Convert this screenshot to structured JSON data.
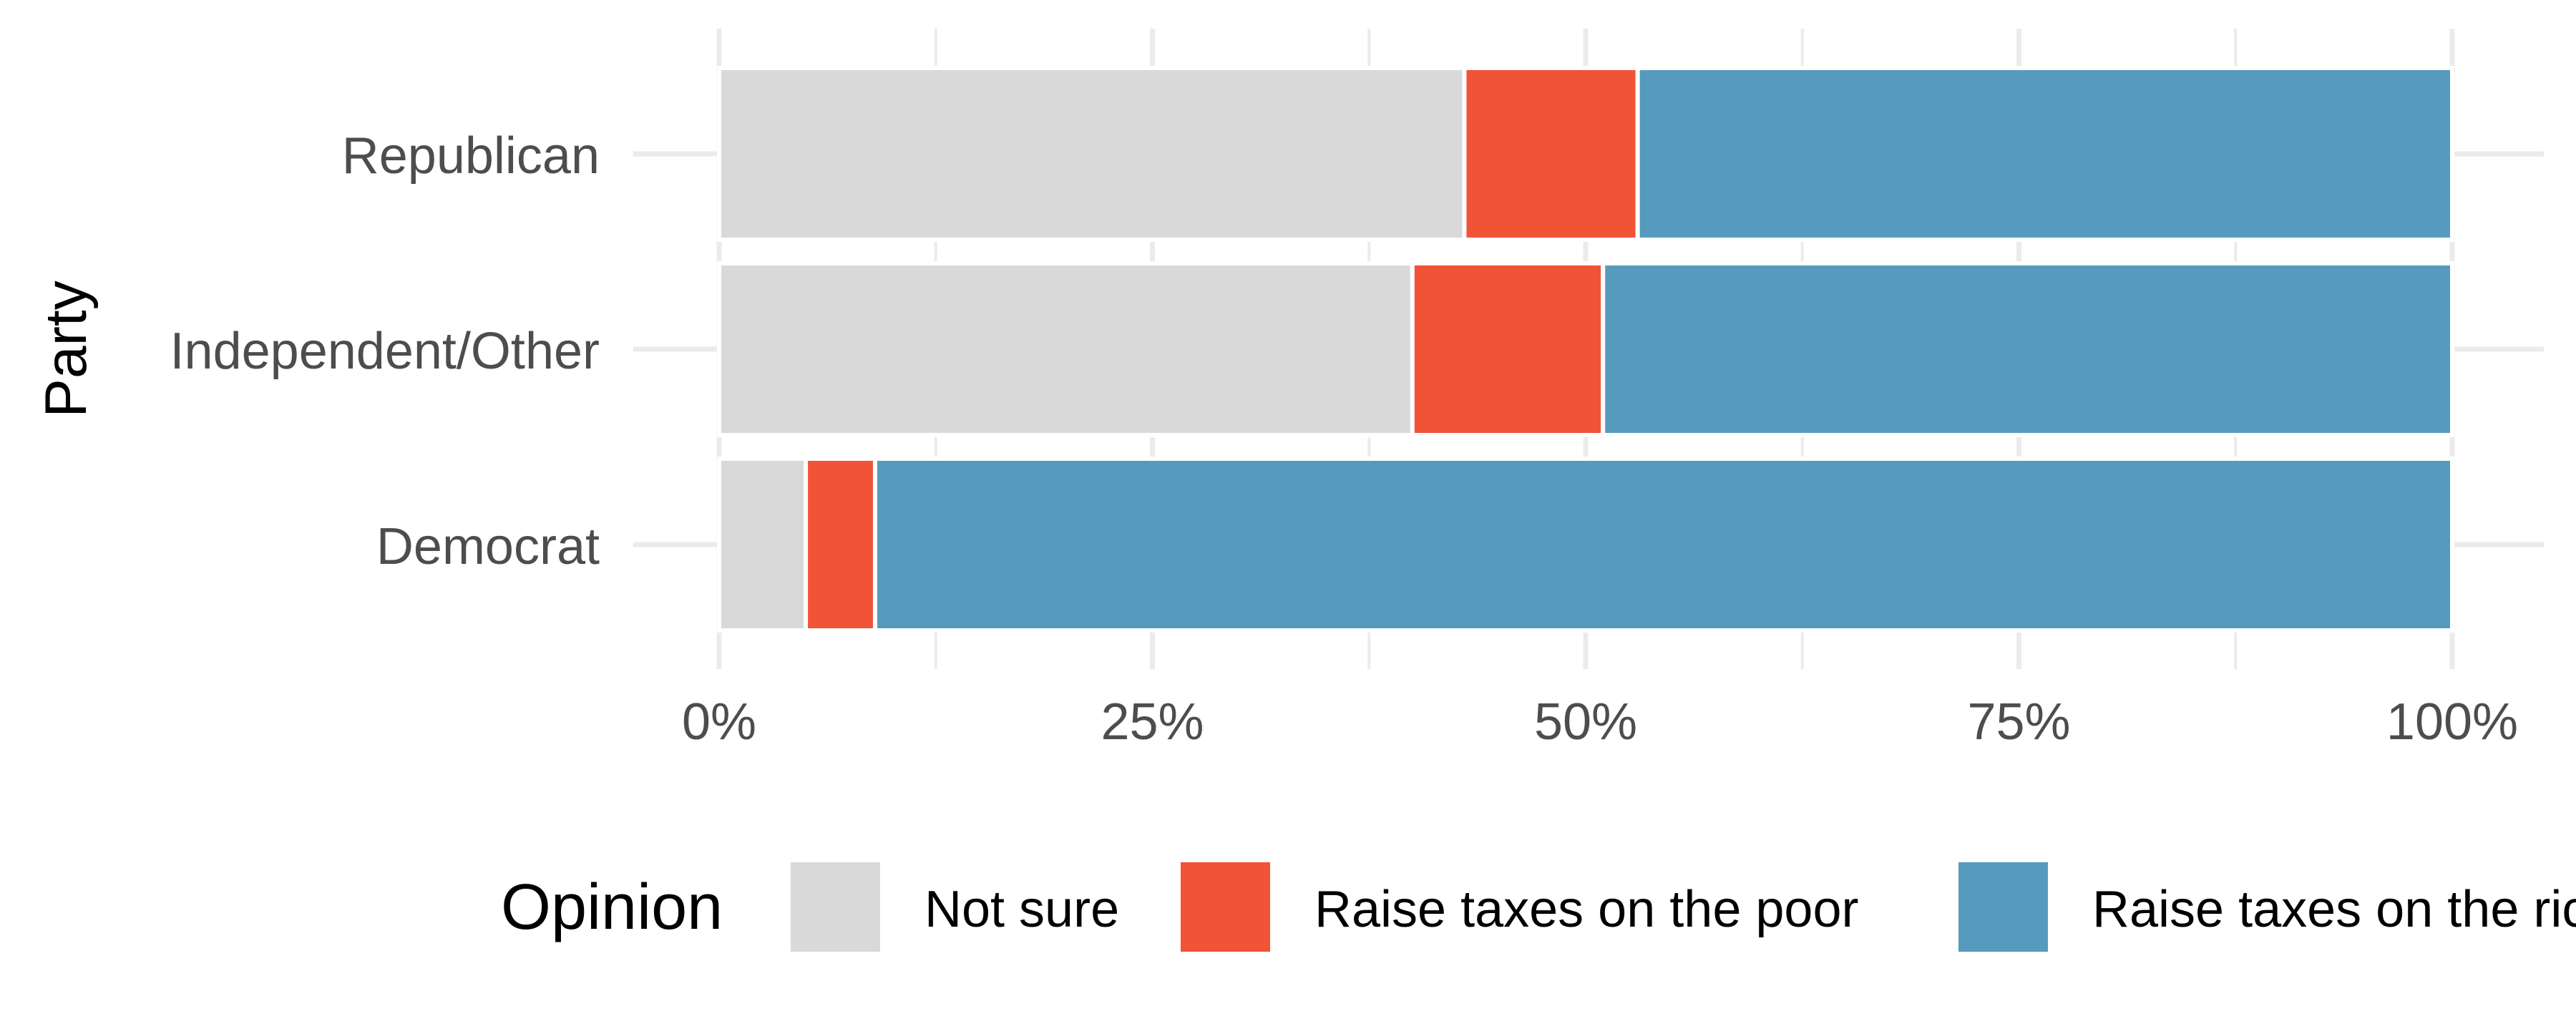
{
  "chart_data": {
    "type": "bar",
    "orientation": "horizontal",
    "stacked": "percent",
    "categories": [
      "Republican",
      "Independent/Other",
      "Democrat"
    ],
    "series": [
      {
        "name": "Not sure",
        "color": "#d9d9d9",
        "values": [
          43,
          40,
          5
        ]
      },
      {
        "name": "Raise taxes on the poor",
        "color": "#f05336",
        "values": [
          10,
          11,
          4
        ]
      },
      {
        "name": "Raise taxes on the rich",
        "color": "#569bbd",
        "values": [
          47,
          49,
          91
        ]
      }
    ],
    "xlim": [
      0,
      100
    ],
    "x_ticks": [
      "0%",
      "25%",
      "50%",
      "75%",
      "100%"
    ],
    "xlabel": "",
    "ylabel": "Party",
    "legend_title": "Opinion",
    "legend_position": "bottom",
    "grid": true
  }
}
